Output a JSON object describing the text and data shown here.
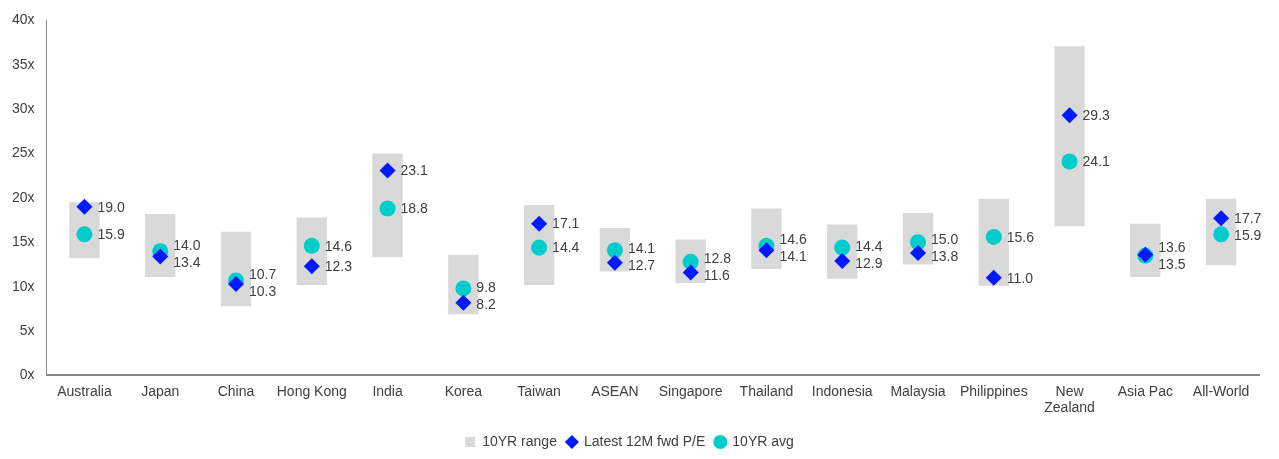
{
  "chart_data": {
    "type": "bar",
    "categories": [
      "Australia",
      "Japan",
      "China",
      "Hong Kong",
      "India",
      "Korea",
      "Taiwan",
      "ASEAN",
      "Singapore",
      "Thailand",
      "Indonesia",
      "Malaysia",
      "Philippines",
      [
        "New",
        "Zealand"
      ],
      "Asia Pac",
      "All-World"
    ],
    "ylim": [
      0,
      40
    ],
    "yticks": [
      {
        "value": 0,
        "label": "0x"
      },
      {
        "value": 5,
        "label": "5x"
      },
      {
        "value": 10,
        "label": "10x"
      },
      {
        "value": 15,
        "label": "15x"
      },
      {
        "value": 20,
        "label": "20x"
      },
      {
        "value": 25,
        "label": "25x"
      },
      {
        "value": 30,
        "label": "30x"
      },
      {
        "value": 35,
        "label": "35x"
      },
      {
        "value": 40,
        "label": "40x"
      }
    ],
    "grid": false,
    "legend": "bottom",
    "series": [
      {
        "name": "10YR range",
        "color": "#d9d9d9",
        "base": [
          13.2,
          11.1,
          7.8,
          10.2,
          13.3,
          6.9,
          10.2,
          11.7,
          10.4,
          12.0,
          10.9,
          12.5,
          10.1,
          16.8,
          11.1,
          12.4
        ],
        "values": [
          6.3,
          7.1,
          8.4,
          7.6,
          11.7,
          6.7,
          9.0,
          4.9,
          4.9,
          6.8,
          6.1,
          5.8,
          9.8,
          20.3,
          6.0,
          7.5
        ]
      },
      {
        "name": "Latest 12M fwd P/E",
        "type": "scatter",
        "marker": "diamond",
        "color": "#0019ff",
        "value_labels": [
          "19.0",
          "13.4",
          "10.3",
          "12.3",
          "23.1",
          "8.2",
          "17.1",
          "12.7",
          "11.6",
          "14.1",
          "12.9",
          "13.8",
          "11.0",
          "29.3",
          "13.6",
          "17.7"
        ],
        "values": [
          19.0,
          13.4,
          10.3,
          12.3,
          23.1,
          8.2,
          17.1,
          12.7,
          11.6,
          14.1,
          12.9,
          13.8,
          11.0,
          29.3,
          13.6,
          17.7
        ]
      },
      {
        "name": "10YR avg",
        "type": "scatter",
        "marker": "circle",
        "color": "#00cccc",
        "value_labels": [
          "15.9",
          "14.0",
          "10.7",
          "14.6",
          "18.8",
          "9.8",
          "14.4",
          "14.1",
          "12.8",
          "14.6",
          "14.4",
          "15.0",
          "15.6",
          "24.1",
          "13.5",
          "15.9"
        ],
        "values": [
          15.9,
          14.0,
          10.7,
          14.6,
          18.8,
          9.8,
          14.4,
          14.1,
          12.8,
          14.6,
          14.4,
          15.0,
          15.6,
          24.1,
          13.5,
          15.9
        ]
      }
    ]
  }
}
